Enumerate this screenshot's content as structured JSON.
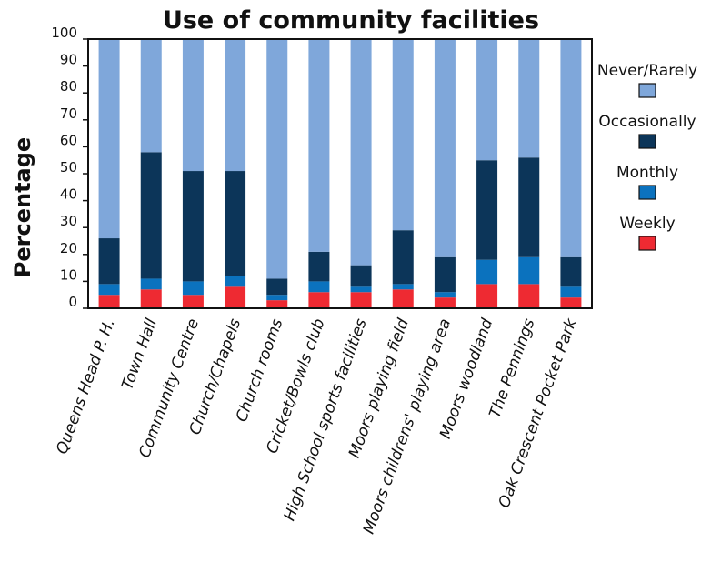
{
  "chart_data": {
    "type": "bar",
    "stacked": true,
    "title": "Use of community facilities",
    "xlabel": "",
    "ylabel": "Percentage",
    "ylim": [
      0,
      100
    ],
    "yticks": [
      0,
      10,
      20,
      30,
      40,
      50,
      60,
      70,
      80,
      90,
      100
    ],
    "grid": false,
    "legend_position": "right",
    "categories": [
      "Queens Head P. H.",
      "Town Hall",
      "Community Centre",
      "Church/Chapels",
      "Church rooms",
      "Cricket/Bowls club",
      "High School sports facilities",
      "Moors playing field",
      "Moors childrens' playing area",
      "Moors woodland",
      "The Pennings",
      "Oak Crescent Pocket Park"
    ],
    "series": [
      {
        "name": "Weekly",
        "color": "#ee2a32",
        "values": [
          5,
          7,
          5,
          8,
          3,
          6,
          6,
          7,
          4,
          9,
          9,
          4
        ]
      },
      {
        "name": "Monthly",
        "color": "#0b72be",
        "values": [
          4,
          4,
          5,
          4,
          2,
          4,
          2,
          2,
          2,
          9,
          10,
          4
        ]
      },
      {
        "name": "Occasionally",
        "color": "#0c3559",
        "values": [
          17,
          47,
          41,
          39,
          6,
          11,
          8,
          20,
          13,
          37,
          37,
          11
        ]
      },
      {
        "name": "Never/Rarely",
        "color": "#7fa7da",
        "values": [
          74,
          42,
          49,
          49,
          89,
          79,
          84,
          71,
          81,
          45,
          44,
          81
        ]
      }
    ],
    "legend_order": [
      "Never/Rarely",
      "Occasionally",
      "Monthly",
      "Weekly"
    ]
  }
}
